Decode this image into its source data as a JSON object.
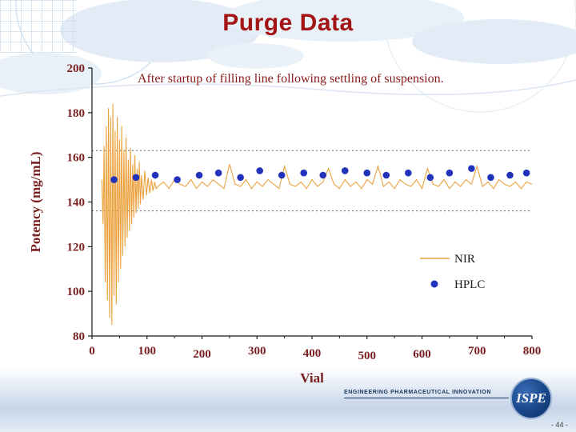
{
  "slide": {
    "title": "Purge Data",
    "subtitle": "After startup of filling line following settling of suspension.",
    "page_number": "- 44 -",
    "logo": {
      "text": "ISPE",
      "tagline": "ENGINEERING PHARMACEUTICAL INNOVATION"
    }
  },
  "colors": {
    "title": "#a31515",
    "subtitle": "#8b1a1a",
    "tick_label": "#7a1f1f",
    "axis": "#1a1a1a",
    "limit_line": "#666666",
    "nir": "#eba23e",
    "hplc": "#2233bb"
  },
  "chart_data": {
    "type": "line",
    "title": "",
    "xlabel": "Vial",
    "ylabel": "Potency (mg/mL)",
    "xlim": [
      0,
      800
    ],
    "ylim": [
      80,
      200
    ],
    "x_ticks": [
      0,
      100,
      200,
      300,
      400,
      500,
      600,
      700,
      800
    ],
    "x_minor_step": 50,
    "y_ticks": [
      80,
      100,
      120,
      140,
      160,
      180,
      200
    ],
    "grid": false,
    "control_limits": {
      "upper": 163,
      "lower": 136
    },
    "legend_position": "inside-lower-right",
    "legend": [
      {
        "label": "NIR",
        "type": "line",
        "series": "NIR"
      },
      {
        "label": "HPLC",
        "type": "dot",
        "series": "HPLC"
      }
    ],
    "series": [
      {
        "name": "NIR",
        "type": "line",
        "color": "#eba23e",
        "points": [
          [
            18,
            150
          ],
          [
            20,
            130
          ],
          [
            22,
            165
          ],
          [
            24,
            104
          ],
          [
            26,
            174
          ],
          [
            28,
            96
          ],
          [
            30,
            182
          ],
          [
            32,
            88
          ],
          [
            34,
            178
          ],
          [
            36,
            85
          ],
          [
            38,
            184
          ],
          [
            40,
            98
          ],
          [
            42,
            172
          ],
          [
            44,
            94
          ],
          [
            46,
            178
          ],
          [
            48,
            104
          ],
          [
            50,
            168
          ],
          [
            52,
            110
          ],
          [
            54,
            174
          ],
          [
            56,
            116
          ],
          [
            58,
            163
          ],
          [
            60,
            120
          ],
          [
            62,
            169
          ],
          [
            64,
            124
          ],
          [
            66,
            159
          ],
          [
            68,
            127
          ],
          [
            70,
            164
          ],
          [
            72,
            130
          ],
          [
            74,
            157
          ],
          [
            76,
            133
          ],
          [
            78,
            161
          ],
          [
            80,
            135
          ],
          [
            82,
            155
          ],
          [
            84,
            137
          ],
          [
            86,
            158
          ],
          [
            88,
            139
          ],
          [
            90,
            152
          ],
          [
            93,
            141
          ],
          [
            96,
            154
          ],
          [
            99,
            143
          ],
          [
            102,
            151
          ],
          [
            105,
            144
          ],
          [
            108,
            150
          ],
          [
            111,
            145
          ],
          [
            114,
            149
          ],
          [
            117,
            146
          ],
          [
            120,
            147
          ],
          [
            130,
            149
          ],
          [
            140,
            146
          ],
          [
            150,
            150
          ],
          [
            160,
            148
          ],
          [
            170,
            147
          ],
          [
            180,
            150
          ],
          [
            190,
            146
          ],
          [
            200,
            149
          ],
          [
            210,
            147
          ],
          [
            220,
            150
          ],
          [
            230,
            148
          ],
          [
            240,
            146
          ],
          [
            250,
            157
          ],
          [
            260,
            148
          ],
          [
            270,
            147
          ],
          [
            280,
            150
          ],
          [
            290,
            146
          ],
          [
            300,
            149
          ],
          [
            310,
            147
          ],
          [
            320,
            150
          ],
          [
            330,
            148
          ],
          [
            340,
            146
          ],
          [
            350,
            156
          ],
          [
            360,
            148
          ],
          [
            370,
            147
          ],
          [
            380,
            149
          ],
          [
            390,
            146
          ],
          [
            400,
            150
          ],
          [
            410,
            147
          ],
          [
            420,
            149
          ],
          [
            430,
            155
          ],
          [
            440,
            148
          ],
          [
            450,
            146
          ],
          [
            460,
            150
          ],
          [
            470,
            147
          ],
          [
            480,
            149
          ],
          [
            490,
            146
          ],
          [
            500,
            150
          ],
          [
            510,
            148
          ],
          [
            520,
            156
          ],
          [
            530,
            147
          ],
          [
            540,
            149
          ],
          [
            550,
            146
          ],
          [
            560,
            150
          ],
          [
            570,
            148
          ],
          [
            580,
            147
          ],
          [
            590,
            150
          ],
          [
            600,
            146
          ],
          [
            610,
            155
          ],
          [
            620,
            148
          ],
          [
            630,
            147
          ],
          [
            640,
            150
          ],
          [
            650,
            146
          ],
          [
            660,
            149
          ],
          [
            670,
            147
          ],
          [
            680,
            150
          ],
          [
            690,
            148
          ],
          [
            700,
            156
          ],
          [
            710,
            147
          ],
          [
            720,
            149
          ],
          [
            730,
            146
          ],
          [
            740,
            150
          ],
          [
            750,
            148
          ],
          [
            760,
            147
          ],
          [
            770,
            149
          ],
          [
            780,
            146
          ],
          [
            790,
            149
          ],
          [
            800,
            148
          ]
        ]
      },
      {
        "name": "HPLC",
        "type": "scatter",
        "color": "#2233bb",
        "points": [
          [
            40,
            150
          ],
          [
            80,
            151
          ],
          [
            115,
            152
          ],
          [
            155,
            150
          ],
          [
            195,
            152
          ],
          [
            230,
            153
          ],
          [
            270,
            151
          ],
          [
            305,
            154
          ],
          [
            345,
            152
          ],
          [
            385,
            153
          ],
          [
            420,
            152
          ],
          [
            460,
            154
          ],
          [
            500,
            153
          ],
          [
            535,
            152
          ],
          [
            575,
            153
          ],
          [
            615,
            151
          ],
          [
            650,
            153
          ],
          [
            690,
            155
          ],
          [
            725,
            151
          ],
          [
            760,
            152
          ],
          [
            790,
            153
          ]
        ]
      }
    ]
  }
}
